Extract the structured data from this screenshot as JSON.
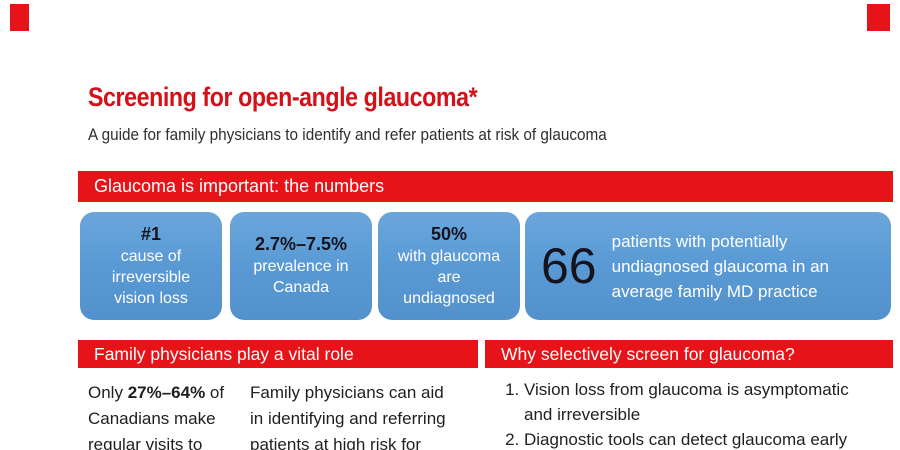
{
  "colors": {
    "accent_red": "#e61419",
    "title_red": "#d41118",
    "stat_blue": "#5b9bd5",
    "stat_dark_text": "#14141f"
  },
  "header": {
    "title": "Screening for open-angle glaucoma*",
    "subtitle": "A guide for family physicians to identify and refer patients at risk of glaucoma"
  },
  "numbers": {
    "banner": "Glaucoma is important: the numbers",
    "stats": [
      {
        "headline": "#1",
        "body": "cause of\nirreversible\nvision loss"
      },
      {
        "headline": "2.7%–7.5%",
        "body": "prevalence in\nCanada"
      },
      {
        "headline": "50%",
        "body": "with glaucoma\nare\nundiagnosed"
      }
    ],
    "big_stat": {
      "number": "66",
      "body": "patients with potentially\nundiagnosed glaucoma in an\naverage family MD practice"
    }
  },
  "role": {
    "banner": "Family physicians play a vital role",
    "col1": {
      "line1_pre": "Only ",
      "line1_bold": "27%–64%",
      "line1_post": " of",
      "line2": "Canadians make",
      "line3": "regular visits to"
    },
    "col2": "Family physicians can aid\nin identifying and referring\npatients at high risk for"
  },
  "screening": {
    "banner": "Why selectively screen for glaucoma?",
    "items": [
      "Vision loss from glaucoma is asymptomatic\nand irreversible",
      "Diagnostic tools can detect glaucoma early"
    ]
  }
}
